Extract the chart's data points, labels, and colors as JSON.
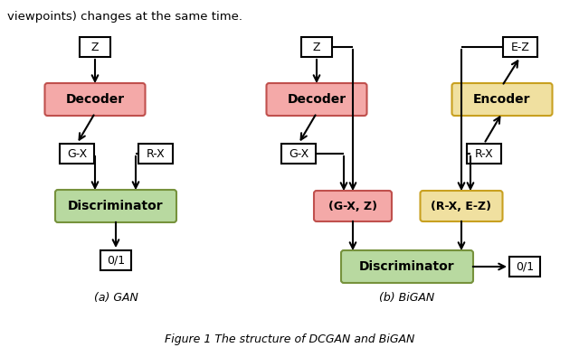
{
  "title": "Figure 1 The structure of DCGAN and BiGAN",
  "background": "#ffffff",
  "gan_label": "(a) GAN",
  "bigan_label": "(b) BiGAN",
  "header_text": "viewpoints) changes at the same time.",
  "colors": {
    "decoder_fill": "#f4a9a8",
    "decoder_edge": "#c0504d",
    "encoder_fill": "#f0e0a0",
    "encoder_edge": "#c8a020",
    "discriminator_fill": "#b8d9a0",
    "discriminator_edge": "#76923c",
    "box_fill": "#ffffff",
    "box_edge": "#000000"
  }
}
